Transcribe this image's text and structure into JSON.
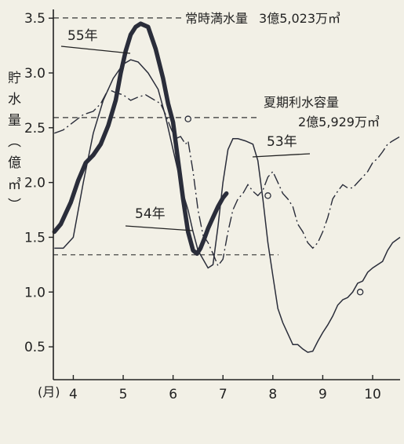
{
  "chart_data": {
    "type": "line",
    "ylabel": "貯水量（億㎥）",
    "xlabel_unit": "(月)",
    "x_ticks": [
      4,
      5,
      6,
      7,
      8,
      9,
      10
    ],
    "y_ticks": [
      "0.5",
      "1.0",
      "1.5",
      "2.0",
      "2.5",
      "3.0",
      "3.5"
    ],
    "y_tick_values": [
      0.5,
      1.0,
      1.5,
      2.0,
      2.5,
      3.0,
      3.5
    ],
    "xlim": [
      3.6,
      10.55
    ],
    "ylim": [
      0.2,
      3.58
    ],
    "reference_lines": [
      {
        "label": "常時満水量",
        "amount": "3億5,023万㎥",
        "y": 3.5023
      },
      {
        "label": "夏期利水容量",
        "amount": "2億5,929万㎥",
        "y": 2.5929
      },
      {
        "label": "",
        "amount": "",
        "y": 1.34
      }
    ],
    "series": [
      {
        "name": "55年",
        "style": "thick",
        "x": [
          3.62,
          3.75,
          3.85,
          3.95,
          4.1,
          4.25,
          4.4,
          4.55,
          4.7,
          4.85,
          4.95,
          5.05,
          5.15,
          5.25,
          5.35,
          5.5,
          5.65,
          5.8,
          5.9,
          6.0,
          6.1,
          6.2,
          6.3,
          6.4,
          6.48,
          6.55,
          6.62,
          6.7,
          6.8,
          6.9,
          7.0,
          7.07
        ],
        "y": [
          1.55,
          1.62,
          1.72,
          1.82,
          2.02,
          2.18,
          2.25,
          2.35,
          2.52,
          2.75,
          3.0,
          3.2,
          3.35,
          3.42,
          3.45,
          3.42,
          3.22,
          2.95,
          2.72,
          2.55,
          2.2,
          1.85,
          1.55,
          1.38,
          1.35,
          1.4,
          1.48,
          1.58,
          1.68,
          1.78,
          1.86,
          1.9
        ]
      },
      {
        "name": "53年",
        "style": "thin",
        "x": [
          3.62,
          3.8,
          4.0,
          4.2,
          4.4,
          4.6,
          4.8,
          5.0,
          5.15,
          5.3,
          5.5,
          5.7,
          5.85,
          6.0,
          6.1,
          6.2,
          6.3,
          6.4,
          6.5,
          6.6,
          6.7,
          6.8,
          6.9,
          7.0,
          7.1,
          7.2,
          7.3,
          7.45,
          7.6,
          7.7,
          7.8,
          7.9,
          8.0,
          8.1,
          8.2,
          8.3,
          8.4,
          8.5,
          8.6,
          8.7,
          8.8,
          8.9,
          9.0,
          9.1,
          9.2,
          9.3,
          9.4,
          9.5,
          9.6,
          9.7,
          9.8,
          9.9,
          10.0,
          10.1,
          10.2,
          10.3,
          10.4,
          10.55
        ],
        "y": [
          1.4,
          1.4,
          1.5,
          2.0,
          2.45,
          2.75,
          2.95,
          3.08,
          3.12,
          3.1,
          3.0,
          2.85,
          2.6,
          2.3,
          2.1,
          1.9,
          1.75,
          1.55,
          1.38,
          1.3,
          1.22,
          1.25,
          1.6,
          2.0,
          2.3,
          2.4,
          2.4,
          2.38,
          2.35,
          2.2,
          1.85,
          1.45,
          1.15,
          0.85,
          0.72,
          0.62,
          0.52,
          0.52,
          0.48,
          0.45,
          0.46,
          0.55,
          0.63,
          0.7,
          0.78,
          0.88,
          0.93,
          0.95,
          1.0,
          1.08,
          1.1,
          1.18,
          1.22,
          1.25,
          1.28,
          1.38,
          1.45,
          1.5
        ]
      },
      {
        "name": "54年",
        "style": "dashdot",
        "x": [
          3.62,
          3.8,
          4.0,
          4.2,
          4.4,
          4.55,
          4.7,
          4.85,
          5.0,
          5.15,
          5.3,
          5.45,
          5.6,
          5.75,
          5.85,
          5.95,
          6.05,
          6.15,
          6.25,
          6.3,
          6.4,
          6.5,
          6.6,
          6.7,
          6.8,
          6.9,
          7.0,
          7.1,
          7.2,
          7.3,
          7.4,
          7.5,
          7.6,
          7.7,
          7.8,
          7.9,
          8.0,
          8.1,
          8.2,
          8.3,
          8.4,
          8.5,
          8.6,
          8.7,
          8.8,
          8.9,
          9.0,
          9.1,
          9.2,
          9.3,
          9.4,
          9.5,
          9.6,
          9.7,
          9.8,
          9.9,
          10.0,
          10.1,
          10.2,
          10.3,
          10.4,
          10.55
        ],
        "y": [
          2.45,
          2.48,
          2.55,
          2.62,
          2.65,
          2.72,
          2.85,
          2.82,
          2.8,
          2.75,
          2.78,
          2.8,
          2.76,
          2.72,
          2.62,
          2.5,
          2.4,
          2.42,
          2.35,
          2.38,
          2.1,
          1.75,
          1.52,
          1.45,
          1.35,
          1.24,
          1.3,
          1.55,
          1.75,
          1.85,
          1.9,
          1.98,
          1.92,
          1.88,
          1.93,
          2.05,
          2.1,
          2.0,
          1.9,
          1.85,
          1.78,
          1.62,
          1.55,
          1.45,
          1.4,
          1.45,
          1.55,
          1.68,
          1.85,
          1.92,
          1.98,
          1.95,
          1.95,
          2.0,
          2.05,
          2.1,
          2.18,
          2.22,
          2.28,
          2.35,
          2.38,
          2.42
        ]
      }
    ],
    "markers": [
      {
        "x": 6.3,
        "y": 2.58
      },
      {
        "x": 7.9,
        "y": 1.88
      },
      {
        "x": 9.75,
        "y": 1.0
      }
    ],
    "annotations": [
      {
        "text": "55年",
        "series": "55年"
      },
      {
        "text": "53年",
        "series": "53年"
      },
      {
        "text": "54年",
        "series": "54年"
      }
    ]
  }
}
